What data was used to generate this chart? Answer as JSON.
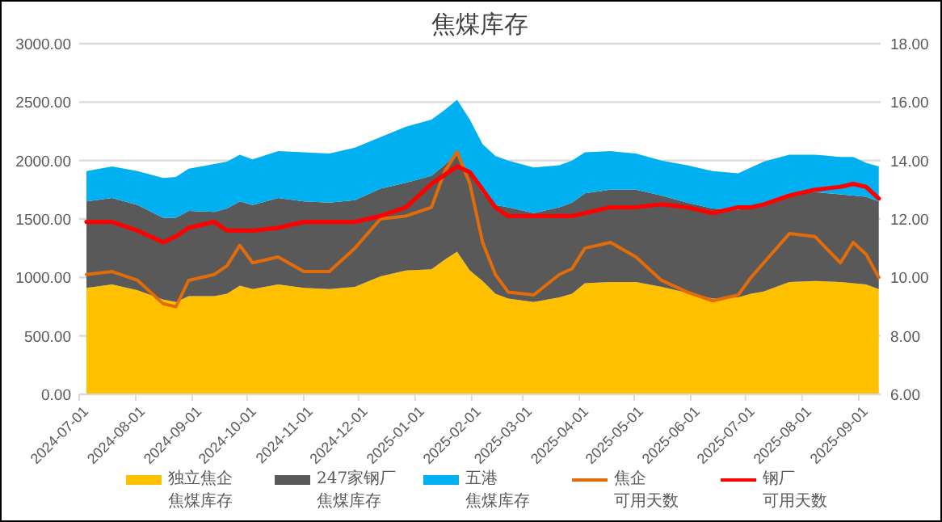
{
  "chart_data": {
    "type": "area",
    "title": "焦煤库存",
    "stacked": true,
    "legend": "bottom",
    "grid": "y",
    "x": [
      "2024-07-05",
      "2024-07-19",
      "2024-08-02",
      "2024-08-16",
      "2024-08-23",
      "2024-08-30",
      "2024-09-13",
      "2024-09-20",
      "2024-09-27",
      "2024-10-04",
      "2024-10-18",
      "2024-11-01",
      "2024-11-15",
      "2024-11-29",
      "2024-12-13",
      "2024-12-27",
      "2025-01-10",
      "2025-01-17",
      "2025-01-24",
      "2025-01-31",
      "2025-02-07",
      "2025-02-14",
      "2025-02-21",
      "2025-03-07",
      "2025-03-21",
      "2025-03-28",
      "2025-04-04",
      "2025-04-18",
      "2025-05-02",
      "2025-05-16",
      "2025-05-30",
      "2025-06-13",
      "2025-06-27",
      "2025-07-04",
      "2025-07-11",
      "2025-07-25",
      "2025-08-08",
      "2025-08-22",
      "2025-08-29",
      "2025-09-05",
      "2025-09-12"
    ],
    "xlim": [
      "2024-07-01",
      "2025-09-13"
    ],
    "xticks": [
      "2024-07-01",
      "2024-08-01",
      "2024-09-01",
      "2024-10-01",
      "2024-11-01",
      "2024-12-01",
      "2025-01-01",
      "2025-02-01",
      "2025-03-01",
      "2025-04-01",
      "2025-05-01",
      "2025-06-01",
      "2025-07-01",
      "2025-08-01",
      "2025-09-01"
    ],
    "ylim": [
      0,
      3000
    ],
    "yticks": [
      {
        "value": 0,
        "label": "0.00"
      },
      {
        "value": 500,
        "label": "500.00"
      },
      {
        "value": 1000,
        "label": "1000.00"
      },
      {
        "value": 1500,
        "label": "1500.00"
      },
      {
        "value": 2000,
        "label": "2000.00"
      },
      {
        "value": 2500,
        "label": "2500.00"
      },
      {
        "value": 3000,
        "label": "3000.00"
      }
    ],
    "y2lim": [
      6,
      18
    ],
    "y2ticks": [
      {
        "value": 6,
        "label": "6.00"
      },
      {
        "value": 8,
        "label": "8.00"
      },
      {
        "value": 10,
        "label": "10.00"
      },
      {
        "value": 12,
        "label": "12.00"
      },
      {
        "value": 14,
        "label": "14.00"
      },
      {
        "value": 16,
        "label": "16.00"
      },
      {
        "value": 18,
        "label": "18.00"
      }
    ],
    "series": [
      {
        "name": "独立焦企焦煤库存",
        "color": "#ffc000",
        "values": [
          910,
          940,
          890,
          810,
          790,
          840,
          840,
          860,
          930,
          900,
          940,
          910,
          900,
          920,
          1010,
          1060,
          1070,
          1150,
          1220,
          1060,
          970,
          860,
          820,
          790,
          830,
          860,
          950,
          960,
          960,
          920,
          870,
          820,
          830,
          860,
          880,
          960,
          970,
          960,
          950,
          940,
          900
        ]
      },
      {
        "name": "247家钢厂焦煤库存",
        "color": "#595959",
        "values": [
          740,
          740,
          730,
          700,
          720,
          730,
          720,
          730,
          720,
          720,
          740,
          740,
          740,
          740,
          750,
          750,
          800,
          810,
          840,
          820,
          750,
          760,
          780,
          760,
          770,
          780,
          770,
          790,
          790,
          780,
          770,
          770,
          750,
          740,
          760,
          760,
          760,
          750,
          750,
          750,
          750
        ]
      },
      {
        "name": "五港焦煤库存",
        "color": "#00b0f0",
        "values": [
          260,
          270,
          290,
          340,
          350,
          360,
          410,
          400,
          400,
          390,
          400,
          420,
          420,
          450,
          440,
          480,
          480,
          470,
          460,
          470,
          420,
          420,
          400,
          390,
          360,
          360,
          350,
          330,
          310,
          300,
          320,
          320,
          310,
          340,
          350,
          330,
          320,
          320,
          330,
          290,
          300
        ]
      },
      {
        "name": "焦企可用天数",
        "color": "#e36c0a",
        "type": "line",
        "axis": "y2",
        "values": [
          10.1,
          10.2,
          9.9,
          9.1,
          9.0,
          9.9,
          10.1,
          10.4,
          11.1,
          10.5,
          10.7,
          10.2,
          10.2,
          11.0,
          12.0,
          12.1,
          12.4,
          13.6,
          14.3,
          13.2,
          11.2,
          10.1,
          9.5,
          9.4,
          10.1,
          10.3,
          11.0,
          11.2,
          10.7,
          9.9,
          9.5,
          9.2,
          9.4,
          10.0,
          10.5,
          11.5,
          11.4,
          10.5,
          11.2,
          10.8,
          10.0
        ]
      },
      {
        "name": "钢厂可用天数",
        "color": "#ff0000",
        "type": "line",
        "axis": "y2",
        "values": [
          11.9,
          11.9,
          11.6,
          11.2,
          11.4,
          11.7,
          11.9,
          11.6,
          11.6,
          11.6,
          11.7,
          11.9,
          11.9,
          11.9,
          12.1,
          12.4,
          13.2,
          13.5,
          13.8,
          13.6,
          13.0,
          12.4,
          12.1,
          12.1,
          12.1,
          12.1,
          12.2,
          12.4,
          12.4,
          12.5,
          12.4,
          12.2,
          12.4,
          12.4,
          12.5,
          12.8,
          13.0,
          13.1,
          13.2,
          13.1,
          12.7
        ]
      }
    ]
  }
}
